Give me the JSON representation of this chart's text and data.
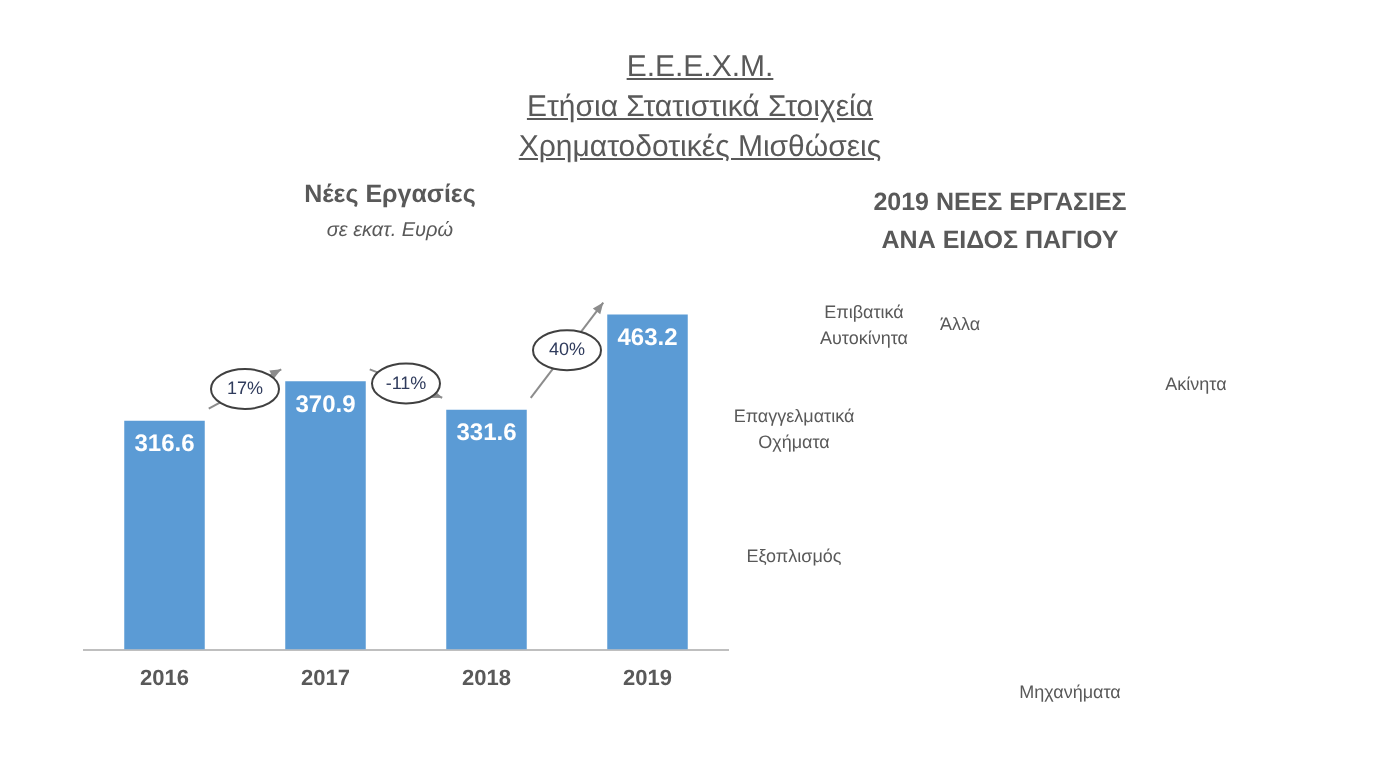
{
  "chart_data": [
    {
      "type": "bar",
      "title": "Ε.Ε.Ε.Χ.Μ.\nΕτήσια Στατιστικά Στοιχεία\nΧρηματοδοτικές Μισθώσεις",
      "subtitle": "Νέες Εργασίες",
      "ylabel": "σε εκατ. Ευρώ",
      "categories": [
        "2016",
        "2017",
        "2018",
        "2019"
      ],
      "values": [
        316.6,
        370.9,
        331.6,
        463.2
      ],
      "color": "#5b9bd5",
      "data_labels": true,
      "grid": false,
      "legend": false,
      "annotations": [
        "17%",
        "-11%",
        "40%"
      ]
    },
    {
      "type": "other",
      "title": "2019 ΝΕΕΣ ΕΡΓΑΣΙΕΣ\nΑΝΑ ΕΙΔΟΣ ΠΑΓΙΟΥ",
      "annotations": [
        "Επιβατικά Αυτοκίνητα",
        "Άλλα",
        "Ακίνητα",
        "Επαγγελματικά Οχήματα",
        "Εξοπλισμός",
        "Μηχανήματα"
      ]
    }
  ]
}
